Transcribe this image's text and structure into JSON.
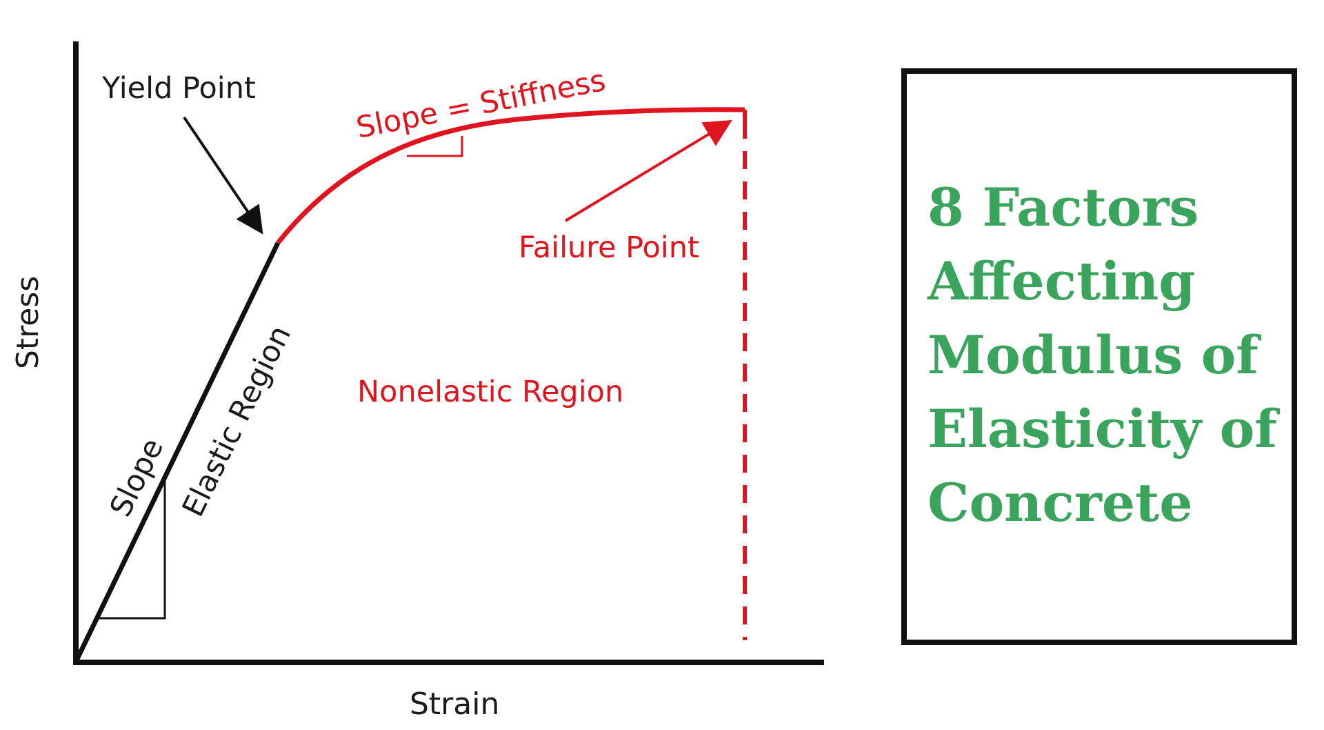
{
  "diagram": {
    "labels": {
      "yield_point": "Yield Point",
      "slope_stiffness": "Slope = Stiffness",
      "failure_point": "Failure Point",
      "nonelastic_region": "Nonelastic Region",
      "elastic_region": "Elastic Region",
      "slope": "Slope",
      "y_axis": "Stress",
      "x_axis": "Strain"
    },
    "colors": {
      "curve": "#e0141e",
      "elastic_line": "#111111",
      "text_dark": "#1a1a1a"
    }
  },
  "title_box": {
    "text": "8 Factors\nAffecting\nModulus of\nElasticity of\nConcrete",
    "color": "#3aa35c"
  }
}
